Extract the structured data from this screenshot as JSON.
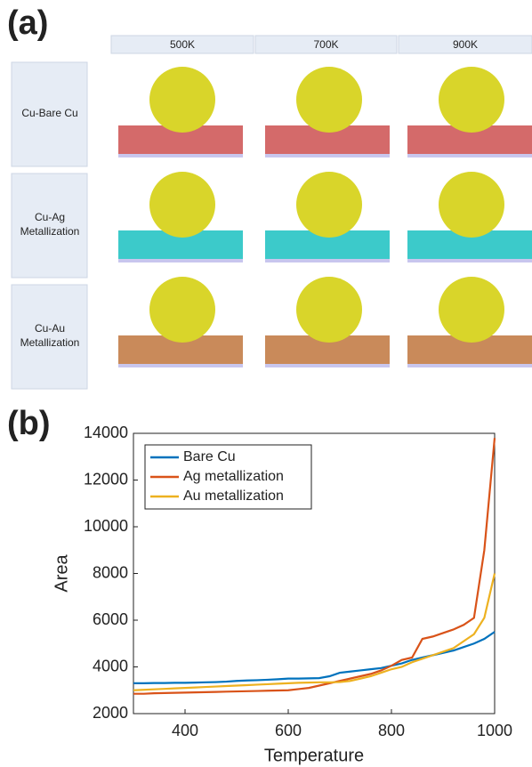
{
  "panel_a": {
    "label": "(a)",
    "columns": [
      "500K",
      "700K",
      "900K"
    ],
    "rows": [
      [
        "Cu-Bare Cu"
      ],
      [
        "Cu-Ag",
        "Metallization"
      ],
      [
        "Cu-Au",
        "Metallization"
      ]
    ]
  },
  "chart_data": {
    "type": "line",
    "panel_label": "(b)",
    "x_label": "Temperature",
    "y_label": "Area",
    "x": [
      300,
      320,
      340,
      360,
      380,
      400,
      420,
      440,
      460,
      480,
      500,
      520,
      540,
      560,
      580,
      600,
      620,
      640,
      660,
      680,
      700,
      720,
      740,
      760,
      780,
      800,
      820,
      840,
      860,
      880,
      900,
      920,
      940,
      960,
      980,
      1000
    ],
    "series": [
      {
        "name": "Bare Cu",
        "color": "#0072bd",
        "values": [
          3300,
          3300,
          3310,
          3310,
          3320,
          3320,
          3330,
          3340,
          3350,
          3370,
          3400,
          3420,
          3430,
          3450,
          3470,
          3500,
          3500,
          3510,
          3520,
          3600,
          3750,
          3800,
          3850,
          3900,
          3950,
          4050,
          4150,
          4300,
          4400,
          4500,
          4600,
          4700,
          4850,
          5000,
          5200,
          5500
        ]
      },
      {
        "name": "Ag metallization",
        "color": "#d95319",
        "values": [
          2850,
          2850,
          2870,
          2880,
          2890,
          2900,
          2910,
          2920,
          2930,
          2940,
          2950,
          2960,
          2970,
          2980,
          2990,
          3000,
          3050,
          3100,
          3200,
          3300,
          3400,
          3500,
          3600,
          3700,
          3850,
          4050,
          4300,
          4400,
          5200,
          5300,
          5450,
          5600,
          5800,
          6100,
          9000,
          13800
        ]
      },
      {
        "name": "Au metallization",
        "color": "#edb120",
        "values": [
          3000,
          3020,
          3040,
          3060,
          3080,
          3100,
          3120,
          3140,
          3160,
          3180,
          3200,
          3220,
          3240,
          3260,
          3280,
          3300,
          3320,
          3330,
          3340,
          3340,
          3350,
          3400,
          3500,
          3600,
          3750,
          3900,
          4000,
          4200,
          4350,
          4500,
          4650,
          4800,
          5100,
          5400,
          6100,
          8000
        ]
      }
    ],
    "xlim": [
      300,
      1000
    ],
    "xticks": [
      400,
      600,
      800,
      1000
    ],
    "ylim": [
      2000,
      14000
    ],
    "yticks": [
      2000,
      4000,
      6000,
      8000,
      10000,
      12000,
      14000
    ],
    "legend": "upper-left"
  }
}
